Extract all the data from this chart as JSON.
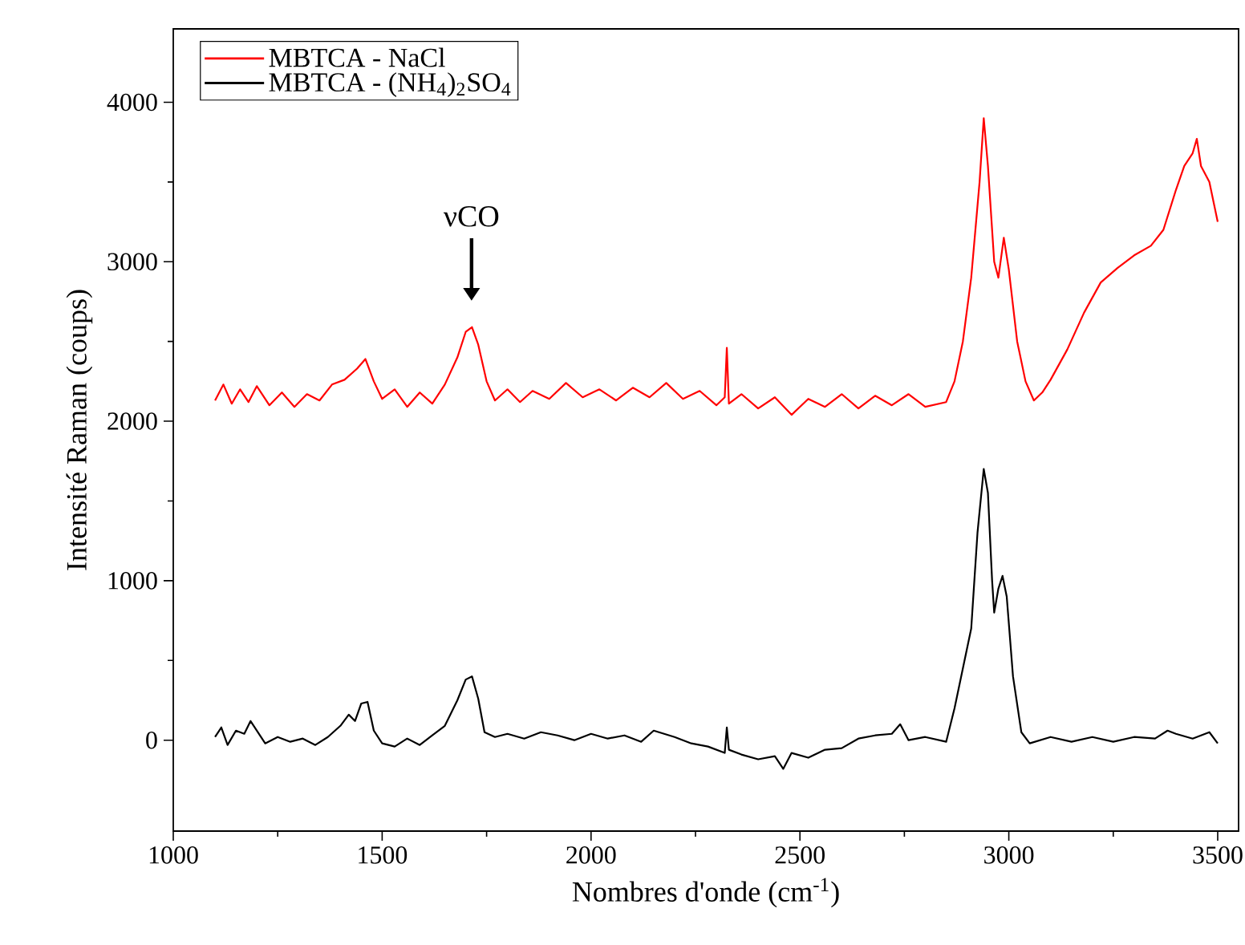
{
  "chart_data": {
    "type": "line",
    "xlabel": "Nombres d'onde (cm$^{-1}$)",
    "ylabel": "Intensité Raman (coups)",
    "xlim": [
      1000,
      3550
    ],
    "ylim": [
      -570,
      4460
    ],
    "xticks": [
      1000,
      1500,
      2000,
      2500,
      3000,
      3500
    ],
    "yticks": [
      0,
      1000,
      2000,
      3000,
      4000
    ],
    "grid": false,
    "legend": "top left",
    "line_style": "solid",
    "marker": "none",
    "annotations": [
      "νCO"
    ],
    "series": [
      {
        "name": "MBTCA - NaCl",
        "color": "#ff0000",
        "x": [
          1100,
          1120,
          1140,
          1160,
          1180,
          1200,
          1230,
          1260,
          1290,
          1320,
          1350,
          1380,
          1410,
          1440,
          1460,
          1480,
          1500,
          1530,
          1560,
          1590,
          1620,
          1650,
          1680,
          1700,
          1715,
          1730,
          1750,
          1770,
          1800,
          1830,
          1860,
          1900,
          1940,
          1980,
          2020,
          2060,
          2100,
          2140,
          2180,
          2220,
          2260,
          2300,
          2320,
          2325,
          2330,
          2360,
          2400,
          2440,
          2480,
          2520,
          2560,
          2600,
          2640,
          2680,
          2720,
          2760,
          2800,
          2850,
          2870,
          2890,
          2910,
          2930,
          2940,
          2950,
          2965,
          2975,
          2988,
          3000,
          3020,
          3040,
          3060,
          3080,
          3100,
          3140,
          3180,
          3220,
          3260,
          3300,
          3340,
          3370,
          3400,
          3420,
          3440,
          3450,
          3460,
          3480,
          3500
        ],
        "values": [
          2130,
          2230,
          2110,
          2200,
          2120,
          2220,
          2100,
          2180,
          2090,
          2170,
          2130,
          2230,
          2260,
          2330,
          2390,
          2250,
          2140,
          2200,
          2090,
          2180,
          2110,
          2230,
          2400,
          2560,
          2590,
          2480,
          2250,
          2130,
          2200,
          2120,
          2190,
          2140,
          2240,
          2150,
          2200,
          2130,
          2210,
          2150,
          2240,
          2140,
          2190,
          2100,
          2150,
          2460,
          2110,
          2170,
          2080,
          2150,
          2040,
          2140,
          2090,
          2170,
          2080,
          2160,
          2100,
          2170,
          2090,
          2120,
          2250,
          2500,
          2900,
          3500,
          3900,
          3600,
          3000,
          2900,
          3150,
          2950,
          2500,
          2250,
          2130,
          2180,
          2260,
          2450,
          2680,
          2870,
          2960,
          3040,
          3100,
          3200,
          3450,
          3600,
          3680,
          3770,
          3600,
          3500,
          3250
        ]
      },
      {
        "name": "MBTCA - (NH$_{4}$)$_{2}$SO$_{4}$",
        "color": "#000000",
        "x": [
          1100,
          1115,
          1130,
          1150,
          1170,
          1185,
          1200,
          1220,
          1250,
          1280,
          1310,
          1340,
          1370,
          1400,
          1420,
          1435,
          1450,
          1465,
          1480,
          1500,
          1530,
          1560,
          1590,
          1620,
          1650,
          1680,
          1700,
          1715,
          1730,
          1745,
          1770,
          1800,
          1840,
          1880,
          1920,
          1960,
          2000,
          2040,
          2080,
          2120,
          2150,
          2200,
          2240,
          2280,
          2320,
          2325,
          2330,
          2360,
          2400,
          2440,
          2460,
          2480,
          2520,
          2560,
          2600,
          2640,
          2680,
          2720,
          2740,
          2760,
          2800,
          2850,
          2870,
          2890,
          2910,
          2925,
          2940,
          2950,
          2960,
          2965,
          2975,
          2985,
          2995,
          3010,
          3030,
          3050,
          3100,
          3150,
          3200,
          3250,
          3300,
          3350,
          3380,
          3400,
          3440,
          3480,
          3500
        ],
        "values": [
          20,
          80,
          -30,
          60,
          40,
          120,
          60,
          -20,
          20,
          -10,
          10,
          -30,
          20,
          90,
          160,
          120,
          230,
          240,
          60,
          -20,
          -40,
          10,
          -30,
          30,
          90,
          250,
          380,
          400,
          260,
          50,
          20,
          40,
          10,
          50,
          30,
          0,
          40,
          10,
          30,
          -10,
          60,
          20,
          -20,
          -40,
          -80,
          80,
          -60,
          -90,
          -120,
          -100,
          -180,
          -80,
          -110,
          -60,
          -50,
          10,
          30,
          40,
          100,
          0,
          20,
          -10,
          200,
          450,
          700,
          1300,
          1700,
          1550,
          1000,
          800,
          950,
          1030,
          900,
          400,
          50,
          -20,
          20,
          -10,
          20,
          -10,
          20,
          10,
          60,
          40,
          10,
          50,
          -20
        ]
      }
    ]
  }
}
